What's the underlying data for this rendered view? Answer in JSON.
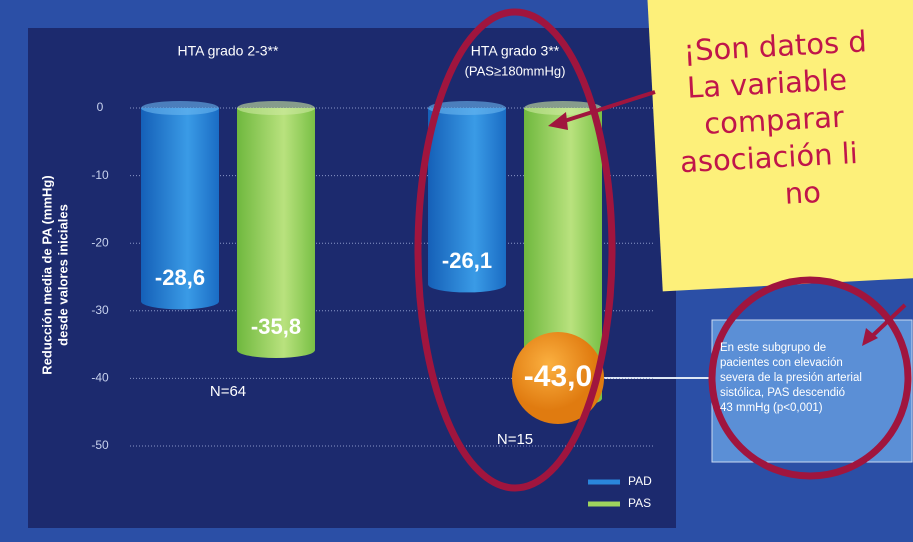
{
  "chart_data": {
    "type": "bar",
    "ylabel": [
      "Reducción media de PA (mmHg)",
      "desde valores iniciales"
    ],
    "categories": [
      "HTA grado 2-3**",
      "HTA grado 3**"
    ],
    "annotations": [
      "(PAS≥180mmHg)",
      "N=64",
      "N=15"
    ],
    "series": [
      {
        "name": "PAD",
        "color": "#2a86dc",
        "values": [
          -28.6,
          -26.1
        ],
        "value_labels": [
          "-28,6",
          "-26,1"
        ]
      },
      {
        "name": "PAS",
        "color": "#9fd45e",
        "values": [
          -35.8,
          -43.0
        ],
        "value_labels": [
          "-35,8",
          "-43,0"
        ]
      }
    ],
    "ylim": [
      -50,
      0
    ],
    "yticks": [
      0,
      -10,
      -20,
      -30,
      -40,
      -50
    ],
    "grid": true
  },
  "sticky_note": [
    "¡Son datos d",
    "La variable",
    "comparar",
    "asociación li",
    "no"
  ],
  "info_box": [
    "En este subgrupo de",
    "pacientes con elevación",
    "severa de la presión arterial",
    "sistólica, PAS descendió",
    "43 mmHg (p<0,001)"
  ]
}
